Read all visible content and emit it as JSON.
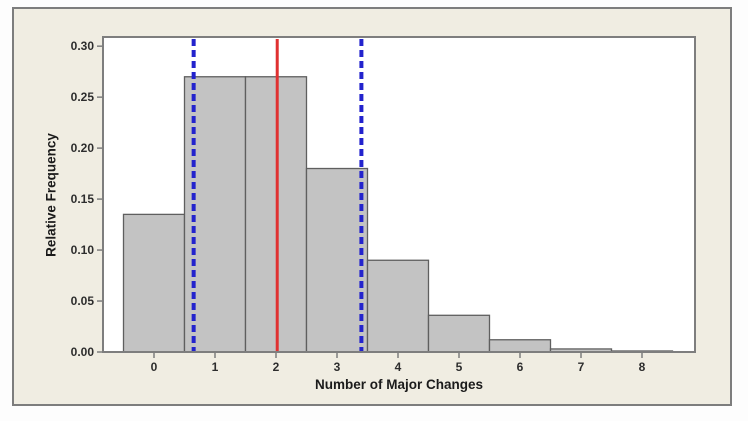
{
  "chart_data": {
    "type": "bar",
    "chart_style": "histogram",
    "title": "",
    "xlabel": "Number of Major Changes",
    "ylabel": "Relative Frequency",
    "categories": [
      0,
      1,
      2,
      3,
      4,
      5,
      6,
      7,
      8
    ],
    "values": [
      0.135,
      0.27,
      0.27,
      0.18,
      0.09,
      0.036,
      0.012,
      0.003,
      0.001
    ],
    "bar_width": 1,
    "xlim": [
      -0.84,
      8.87
    ],
    "ylim": [
      0,
      0.309
    ],
    "grid": false,
    "legend": "none",
    "x_ticks": [
      {
        "value": 0,
        "label": "0"
      },
      {
        "value": 1,
        "label": "1"
      },
      {
        "value": 2,
        "label": "2"
      },
      {
        "value": 3,
        "label": "3"
      },
      {
        "value": 4,
        "label": "4"
      },
      {
        "value": 5,
        "label": "5"
      },
      {
        "value": 6,
        "label": "6"
      },
      {
        "value": 7,
        "label": "7"
      },
      {
        "value": 8,
        "label": "8"
      }
    ],
    "y_ticks": [
      {
        "value": 0.0,
        "label": "0.00"
      },
      {
        "value": 0.05,
        "label": "0.05"
      },
      {
        "value": 0.1,
        "label": "0.10"
      },
      {
        "value": 0.15,
        "label": "0.15"
      },
      {
        "value": 0.2,
        "label": "0.20"
      },
      {
        "value": 0.25,
        "label": "0.25"
      },
      {
        "value": 0.3,
        "label": "0.30"
      }
    ],
    "reference_lines": [
      {
        "x": 0.65,
        "style": "dashed",
        "color": "#2323cd",
        "name": "lower-blue-dashed-line"
      },
      {
        "x": 2.02,
        "style": "solid",
        "color": "#e03131",
        "name": "red-center-line"
      },
      {
        "x": 3.4,
        "style": "dashed",
        "color": "#2323cd",
        "name": "upper-blue-dashed-line"
      }
    ],
    "colors": {
      "bar_fill": "#c3c3c3",
      "bar_stroke": "#5f5f5f",
      "plot_bg": "#ffffff",
      "figure_bg": "#f0ede2",
      "plot_border": "#7e7e7e",
      "figure_border": "#7d7d7d",
      "tick_text": "#2d2d2d",
      "title_text": "#1b1b1b",
      "page_bg": "#fdfdfd"
    }
  }
}
